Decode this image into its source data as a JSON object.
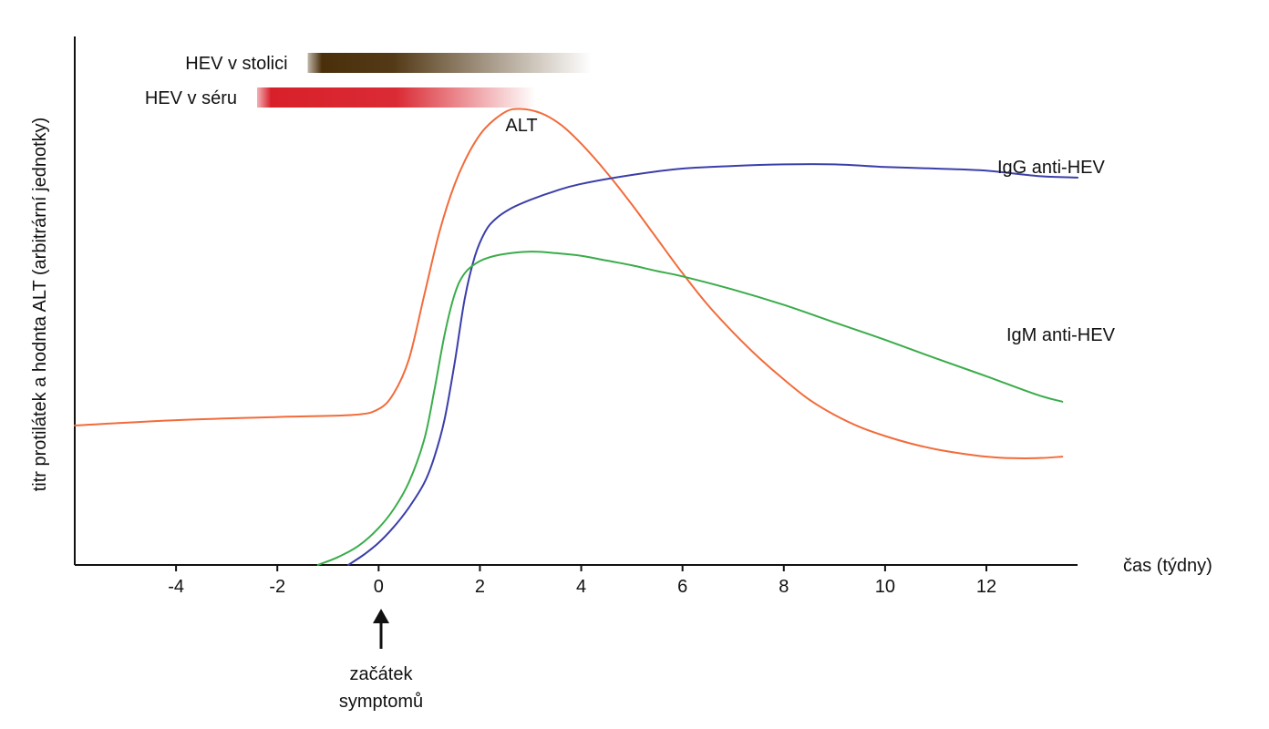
{
  "chart_data": {
    "type": "line",
    "xlabel": "čas (týdny)",
    "ylabel": "titr protilátek a hodnta ALT (arbitrární jednotky)",
    "xlim": [
      -6,
      13.8
    ],
    "ylim": [
      0,
      100
    ],
    "x_ticks": [
      -4,
      -2,
      0,
      2,
      4,
      6,
      8,
      10,
      12
    ],
    "grid": false,
    "series": [
      {
        "name": "ALT",
        "color": "#f26b3a",
        "points": [
          [
            -6,
            26.4
          ],
          [
            -4,
            27.4
          ],
          [
            -2,
            28.0
          ],
          [
            -0.5,
            28.4
          ],
          [
            0,
            29.5
          ],
          [
            0.3,
            32.5
          ],
          [
            0.6,
            39
          ],
          [
            0.9,
            51
          ],
          [
            1.2,
            63
          ],
          [
            1.5,
            72
          ],
          [
            1.8,
            78.3
          ],
          [
            2.1,
            82.6
          ],
          [
            2.5,
            85.7
          ],
          [
            2.8,
            86.3
          ],
          [
            3.2,
            85.5
          ],
          [
            3.6,
            83.3
          ],
          [
            4.0,
            79.7
          ],
          [
            4.5,
            74.3
          ],
          [
            5.0,
            68.2
          ],
          [
            5.5,
            61.7
          ],
          [
            6.0,
            55.2
          ],
          [
            6.5,
            49.2
          ],
          [
            7.0,
            44.0
          ],
          [
            7.5,
            39.3
          ],
          [
            8.0,
            35.1
          ],
          [
            8.5,
            31.3
          ],
          [
            9.0,
            28.4
          ],
          [
            9.5,
            26.1
          ],
          [
            10.0,
            24.4
          ],
          [
            10.5,
            23.0
          ],
          [
            11.0,
            21.9
          ],
          [
            11.5,
            21.1
          ],
          [
            12.0,
            20.5
          ],
          [
            12.5,
            20.2
          ],
          [
            13.0,
            20.2
          ],
          [
            13.5,
            20.5
          ]
        ]
      },
      {
        "name": "IgG anti-HEV",
        "color": "#3b3fa8",
        "points": [
          [
            -0.6,
            0
          ],
          [
            -0.3,
            1.9
          ],
          [
            0,
            4.2
          ],
          [
            0.3,
            7.2
          ],
          [
            0.6,
            10.9
          ],
          [
            0.9,
            15.5
          ],
          [
            1.1,
            20.4
          ],
          [
            1.3,
            27.5
          ],
          [
            1.5,
            38.2
          ],
          [
            1.7,
            50.4
          ],
          [
            1.9,
            58.4
          ],
          [
            2.1,
            63.0
          ],
          [
            2.3,
            65.4
          ],
          [
            2.6,
            67.4
          ],
          [
            3.0,
            69.1
          ],
          [
            3.5,
            70.8
          ],
          [
            4.0,
            72.1
          ],
          [
            5.0,
            73.8
          ],
          [
            6.0,
            75.0
          ],
          [
            7.0,
            75.5
          ],
          [
            8.0,
            75.8
          ],
          [
            9.0,
            75.8
          ],
          [
            10.0,
            75.3
          ],
          [
            11.0,
            75.0
          ],
          [
            12.0,
            74.6
          ],
          [
            13.0,
            73.6
          ],
          [
            13.8,
            73.3
          ]
        ]
      },
      {
        "name": "IgM anti-HEV",
        "color": "#3aac4a",
        "points": [
          [
            -1.2,
            0
          ],
          [
            -0.8,
            1.5
          ],
          [
            -0.4,
            3.6
          ],
          [
            0,
            7.0
          ],
          [
            0.3,
            10.6
          ],
          [
            0.6,
            15.7
          ],
          [
            0.9,
            23.7
          ],
          [
            1.1,
            33.0
          ],
          [
            1.3,
            43.5
          ],
          [
            1.5,
            51.2
          ],
          [
            1.7,
            55.2
          ],
          [
            2.0,
            57.5
          ],
          [
            2.4,
            58.7
          ],
          [
            3.0,
            59.3
          ],
          [
            3.5,
            59.0
          ],
          [
            4.0,
            58.5
          ],
          [
            4.5,
            57.6
          ],
          [
            5.0,
            56.7
          ],
          [
            5.5,
            55.6
          ],
          [
            6.0,
            54.6
          ],
          [
            7.0,
            52.1
          ],
          [
            8.0,
            49.2
          ],
          [
            9.0,
            45.9
          ],
          [
            10.0,
            42.6
          ],
          [
            11.0,
            39.1
          ],
          [
            12.0,
            35.7
          ],
          [
            13.0,
            32.2
          ],
          [
            13.5,
            30.9
          ]
        ]
      }
    ],
    "series_labels": [
      "ALT",
      "IgG anti-HEV",
      "IgM anti-HEV"
    ],
    "bars": [
      {
        "label": "HEV v stolici",
        "start": -1.4,
        "end": 4.2,
        "color": "#4a2f0a"
      },
      {
        "label": "HEV v séru",
        "start": -2.4,
        "end": 3.1,
        "color": "#d8202a"
      }
    ],
    "annotation": {
      "x": 0,
      "lines": [
        "začátek",
        "symptomů"
      ]
    }
  }
}
